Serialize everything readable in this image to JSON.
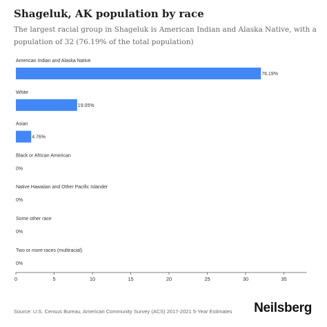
{
  "title": "Shageluk, AK population by race",
  "subtitle": "The largest racial group in Shageluk is American Indian and Alaska Native, with a population of 32 (76.19% of the total population)",
  "footer": "Source: U.S. Census Bureau, American Community Survey (ACS) 2017-2021 5-Year Estimates",
  "brand": "Neilsberg",
  "chart_data": {
    "type": "bar",
    "orientation": "horizontal",
    "categories": [
      "American Indian and Alaska Native",
      "White",
      "Asian",
      "Black or African American",
      "Native Hawaiian and Other Pacific Islander",
      "Some other race",
      "Two or more races (multiracial)"
    ],
    "values": [
      32,
      8,
      2,
      0,
      0,
      0,
      0
    ],
    "labels": [
      "76.19%",
      "19.05%",
      "4.76%",
      "0%",
      "0%",
      "0%",
      "0%"
    ],
    "xlim": [
      0,
      38
    ],
    "xticks": [
      0,
      5,
      10,
      15,
      20,
      25,
      30,
      35
    ],
    "bar_color": "#4287f5",
    "grid": false,
    "legend": "none"
  }
}
